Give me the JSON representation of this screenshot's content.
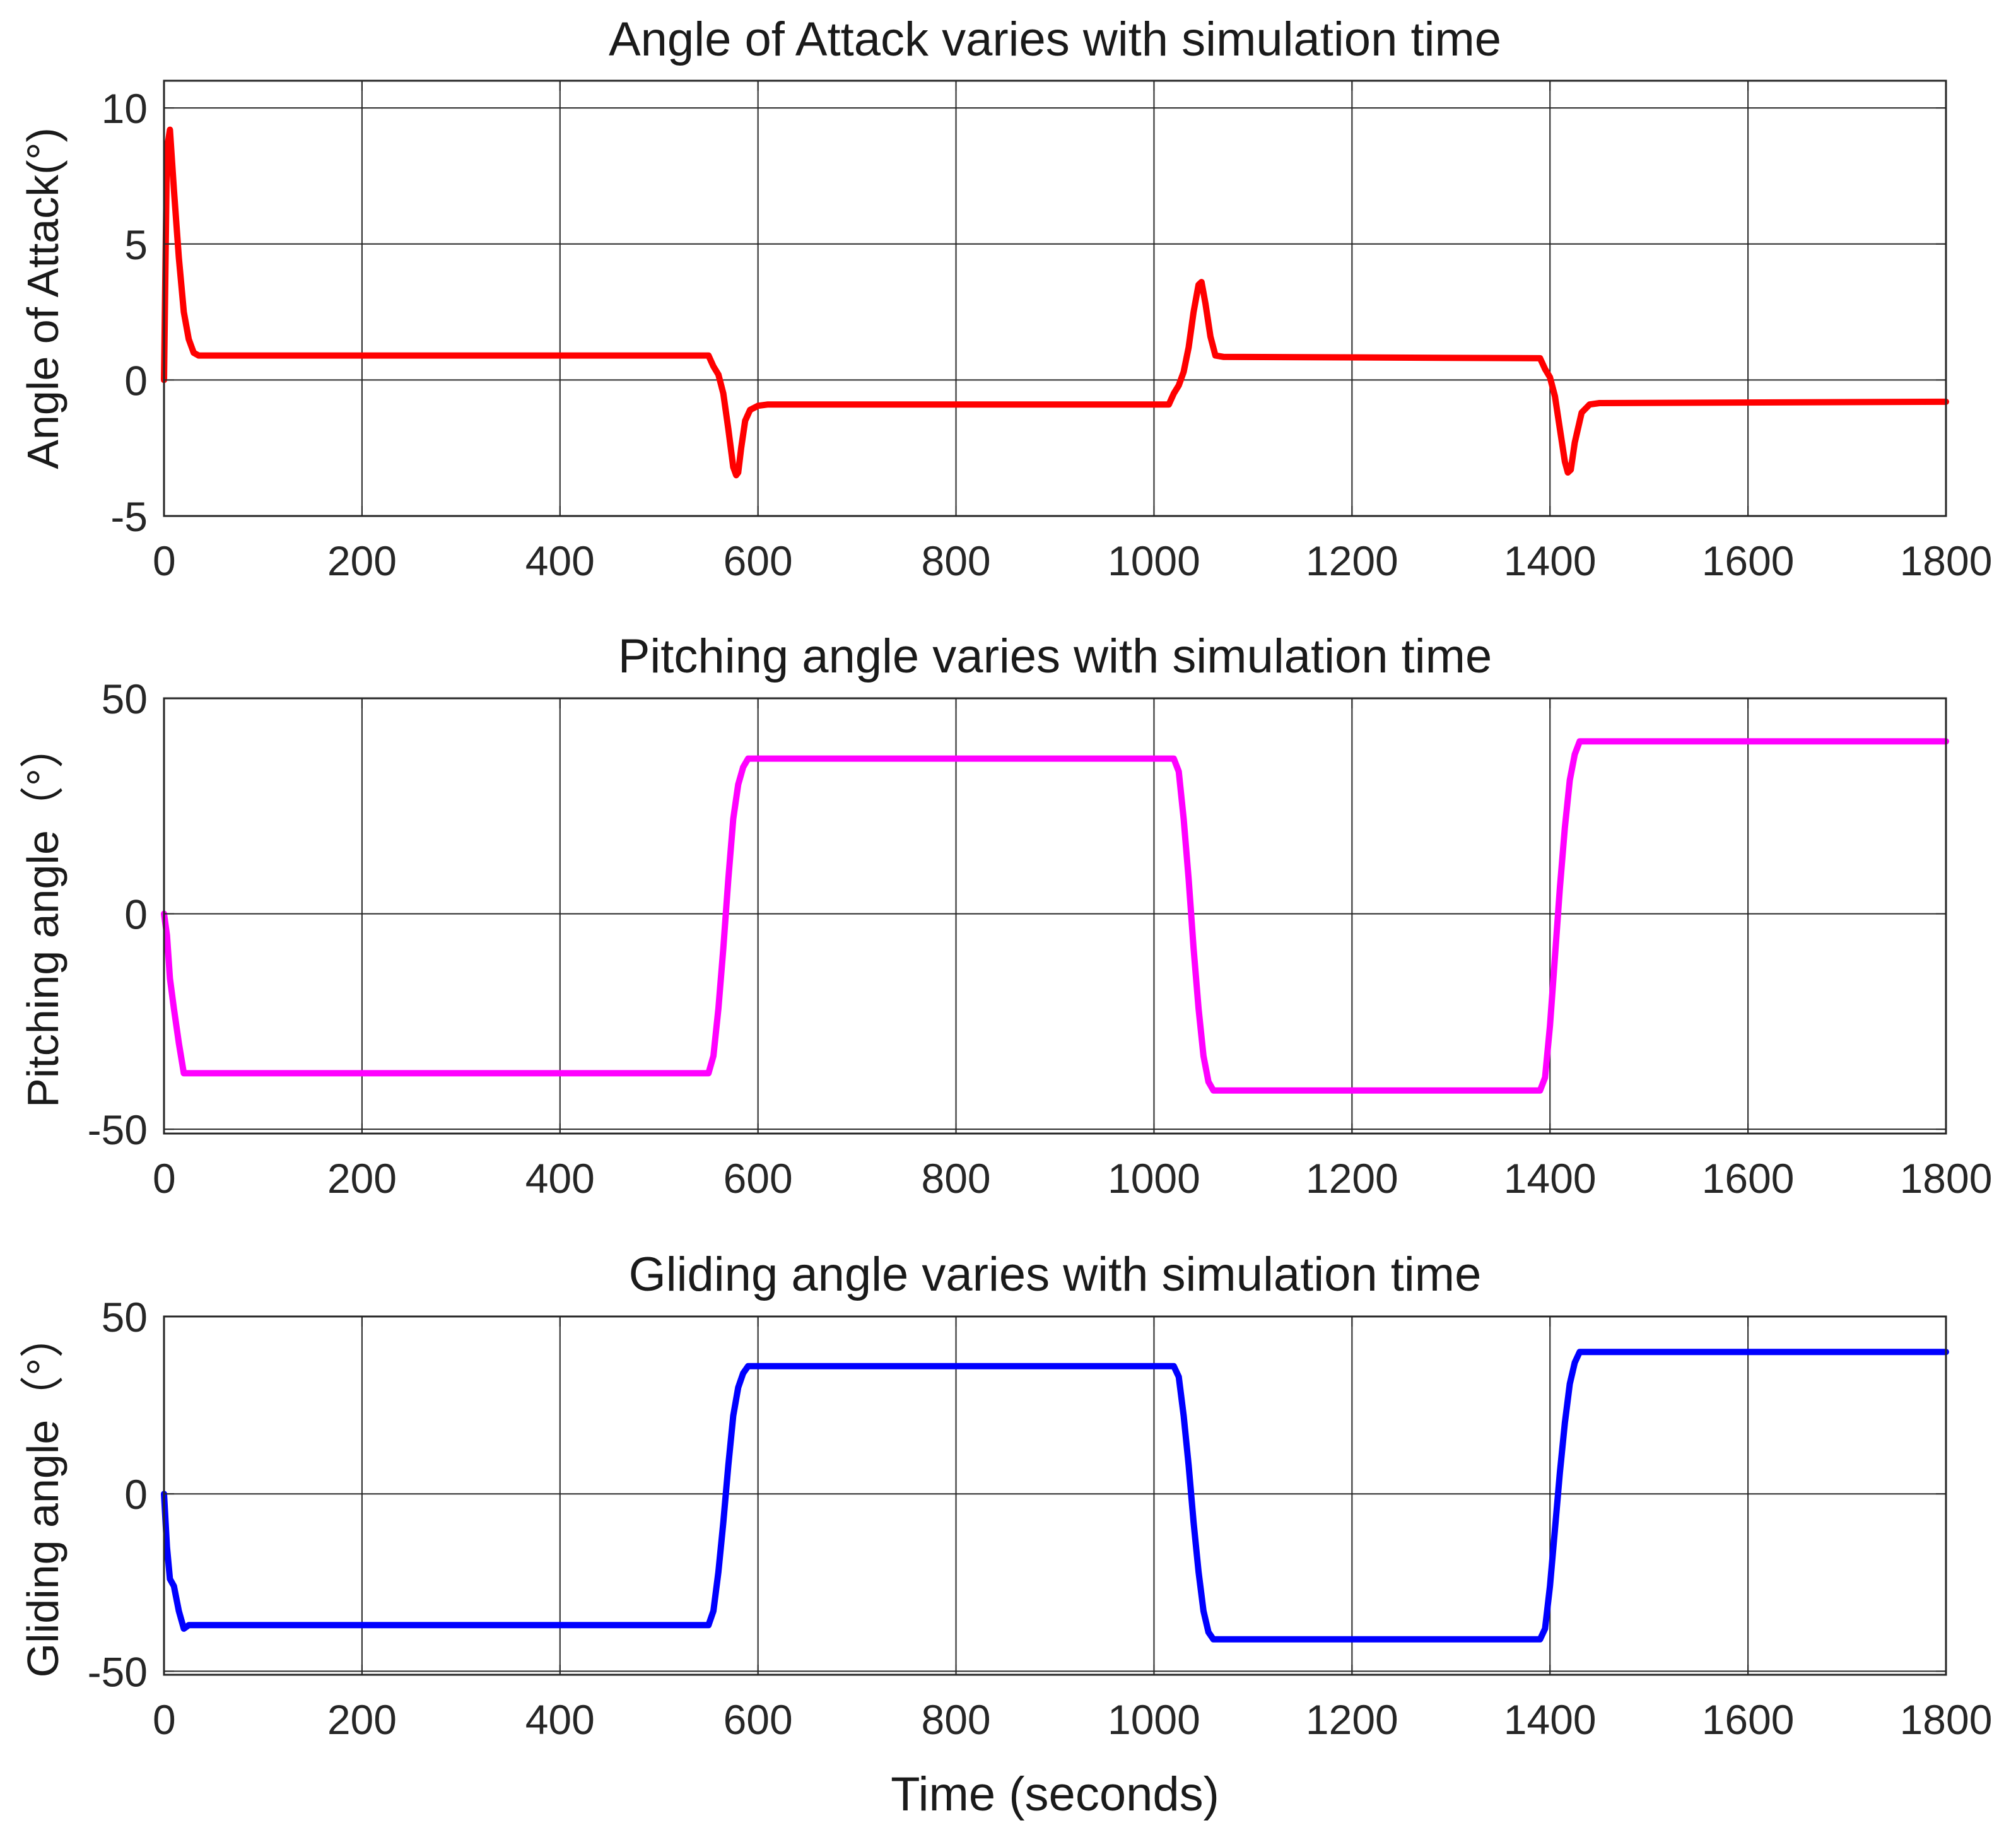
{
  "xlabel": "Time (seconds)",
  "chart_data": [
    {
      "type": "line",
      "title": "Angle of Attack varies with simulation time",
      "ylabel": "Angle of Attack(°)",
      "xlim": [
        0,
        1800
      ],
      "ylim": [
        -5,
        11
      ],
      "xticks": [
        0,
        200,
        400,
        600,
        800,
        1000,
        1200,
        1400,
        1600,
        1800
      ],
      "yticks": [
        -5,
        0,
        5,
        10
      ],
      "grid": true,
      "series": [
        {
          "name": "Angle of Attack",
          "color": "#ff0000",
          "x": [
            0,
            3,
            6,
            10,
            15,
            20,
            25,
            30,
            35,
            550,
            555,
            560,
            565,
            570,
            575,
            578,
            580,
            583,
            587,
            592,
            600,
            610,
            1015,
            1020,
            1025,
            1030,
            1035,
            1040,
            1045,
            1048,
            1052,
            1057,
            1062,
            1070,
            1390,
            1395,
            1400,
            1405,
            1410,
            1415,
            1418,
            1421,
            1425,
            1432,
            1440,
            1450,
            1800
          ],
          "y": [
            0,
            8.5,
            9.2,
            7.0,
            4.5,
            2.5,
            1.5,
            1.0,
            0.9,
            0.9,
            0.5,
            0.2,
            -0.5,
            -1.8,
            -3.2,
            -3.5,
            -3.4,
            -2.5,
            -1.5,
            -1.1,
            -0.95,
            -0.9,
            -0.9,
            -0.5,
            -0.2,
            0.3,
            1.2,
            2.5,
            3.5,
            3.6,
            2.8,
            1.6,
            0.9,
            0.85,
            0.8,
            0.4,
            0.1,
            -0.6,
            -1.8,
            -3.0,
            -3.4,
            -3.3,
            -2.3,
            -1.2,
            -0.9,
            -0.85,
            -0.8
          ]
        }
      ]
    },
    {
      "type": "line",
      "title": "Pitching angle varies with simulation time",
      "ylabel": "Pitching angle（°）",
      "xlim": [
        0,
        1800
      ],
      "ylim": [
        -51,
        50
      ],
      "xticks": [
        0,
        200,
        400,
        600,
        800,
        1000,
        1200,
        1400,
        1600,
        1800
      ],
      "yticks": [
        -50,
        0,
        50
      ],
      "grid": true,
      "series": [
        {
          "name": "Pitching angle",
          "color": "#ff00ff",
          "x": [
            0,
            3,
            6,
            10,
            15,
            20,
            25,
            30,
            550,
            555,
            560,
            565,
            570,
            575,
            580,
            585,
            590,
            600,
            1020,
            1025,
            1030,
            1035,
            1040,
            1045,
            1050,
            1055,
            1060,
            1070,
            1390,
            1395,
            1400,
            1405,
            1410,
            1415,
            1420,
            1425,
            1430,
            1440,
            1800
          ],
          "y": [
            0,
            -5,
            -15,
            -22,
            -30,
            -37,
            -37,
            -37,
            -37,
            -33,
            -22,
            -8,
            8,
            22,
            30,
            34,
            36,
            36,
            36,
            33,
            22,
            8,
            -8,
            -22,
            -33,
            -39,
            -41,
            -41,
            -41,
            -38,
            -26,
            -10,
            6,
            20,
            31,
            37,
            40,
            40,
            40
          ]
        }
      ]
    },
    {
      "type": "line",
      "title": "Gliding angle varies with simulation time",
      "ylabel": "Gliding angle（°）",
      "xlim": [
        0,
        1800
      ],
      "ylim": [
        -51,
        50
      ],
      "xticks": [
        0,
        200,
        400,
        600,
        800,
        1000,
        1200,
        1400,
        1600,
        1800
      ],
      "yticks": [
        -50,
        0,
        50
      ],
      "grid": true,
      "series": [
        {
          "name": "Gliding angle",
          "color": "#0000ff",
          "x": [
            0,
            3,
            6,
            10,
            15,
            20,
            25,
            30,
            550,
            555,
            560,
            565,
            570,
            575,
            580,
            585,
            590,
            600,
            1020,
            1025,
            1030,
            1035,
            1040,
            1045,
            1050,
            1055,
            1060,
            1065,
            1070,
            1390,
            1395,
            1400,
            1405,
            1410,
            1415,
            1420,
            1425,
            1430,
            1440,
            1800
          ],
          "y": [
            0,
            -15,
            -24,
            -26,
            -33,
            -38,
            -37,
            -37,
            -37,
            -33,
            -22,
            -8,
            8,
            22,
            30,
            34,
            36,
            36,
            36,
            33,
            22,
            8,
            -8,
            -22,
            -33,
            -39,
            -41,
            -41,
            -41,
            -41,
            -38,
            -26,
            -10,
            6,
            20,
            31,
            37,
            40,
            40,
            40
          ]
        }
      ]
    }
  ]
}
